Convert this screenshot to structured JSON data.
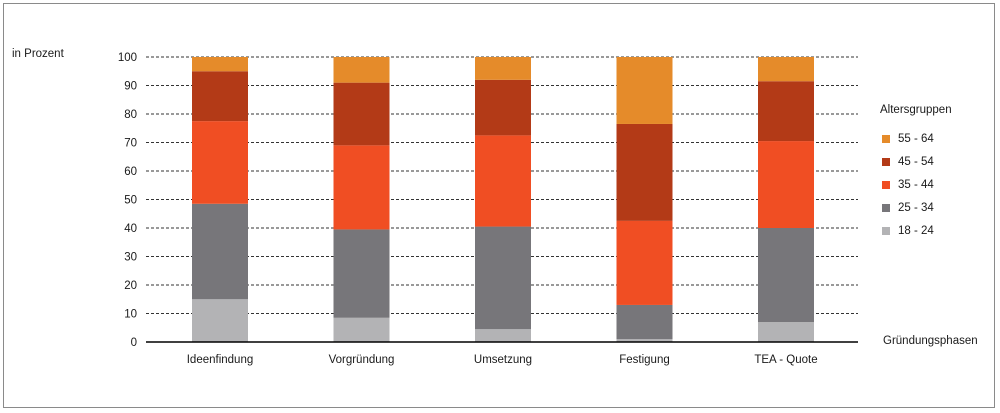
{
  "chart_data": {
    "type": "bar",
    "stacked": true,
    "ylabel": "in Prozent",
    "xlabel": "Gründungsphasen",
    "ylim": [
      0,
      100
    ],
    "yticks": [
      0,
      10,
      20,
      30,
      40,
      50,
      60,
      70,
      80,
      90,
      100
    ],
    "grid": true,
    "legend_title": "Altersgruppen",
    "legend_position": "right",
    "categories": [
      "Ideenfindung",
      "Vorgründung",
      "Umsetzung",
      "Festigung",
      "TEA - Quote"
    ],
    "series": [
      {
        "name": "18 - 24",
        "color": "#b3b3b5",
        "values": [
          15,
          8.5,
          4.5,
          1,
          7
        ]
      },
      {
        "name": "25 - 34",
        "color": "#77767a",
        "values": [
          33.5,
          31,
          36,
          12,
          33
        ]
      },
      {
        "name": "35 - 44",
        "color": "#f04e23",
        "values": [
          29,
          29.5,
          32,
          29.5,
          30.5
        ]
      },
      {
        "name": "45 - 54",
        "color": "#b33a17",
        "values": [
          17.5,
          22,
          19.5,
          34,
          21
        ]
      },
      {
        "name": "55 - 64",
        "color": "#e58b2a",
        "values": [
          5,
          9,
          8,
          23.5,
          8.5
        ]
      }
    ]
  }
}
